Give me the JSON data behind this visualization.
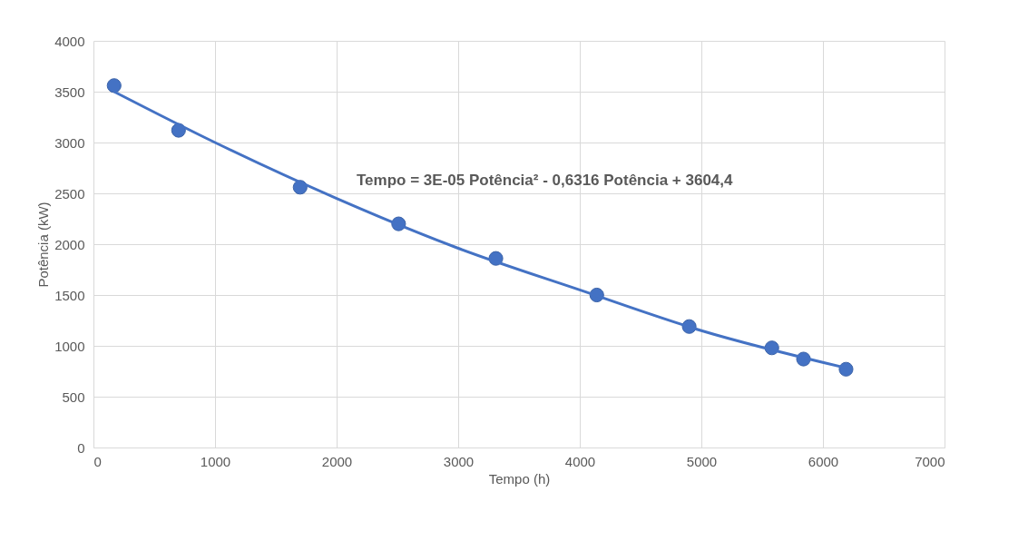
{
  "chart_data": {
    "type": "scatter",
    "xlabel": "Tempo (h)",
    "ylabel": "Potência (kW)",
    "xlim": [
      0,
      7000
    ],
    "xticks": [
      0,
      1000,
      2000,
      3000,
      4000,
      5000,
      6000,
      7000
    ],
    "ylim": [
      0,
      4000
    ],
    "yticks": [
      0,
      500,
      1000,
      1500,
      2000,
      2500,
      3000,
      3500,
      4000
    ],
    "grid": true,
    "series": [
      {
        "color": "#4472c4",
        "marker": "circle",
        "x": [
          170,
          700,
          1700,
          2510,
          3310,
          4140,
          4900,
          5580,
          5840,
          6190
        ],
        "values": [
          3560,
          3120,
          2560,
          2200,
          1860,
          1500,
          1190,
          980,
          870,
          770
        ]
      },
      {
        "type": "line",
        "color": "#4472c4",
        "line_style": "solid",
        "marker": "none",
        "x": [
          170,
          1000,
          2000,
          3000,
          4000,
          5000,
          6200
        ],
        "values": [
          3500,
          3000,
          2450,
          1960,
          1550,
          1150,
          780
        ]
      }
    ],
    "annotations": [
      "Tempo = 3E-05 Potência² - 0,6316 Potência + 3604,4"
    ]
  }
}
